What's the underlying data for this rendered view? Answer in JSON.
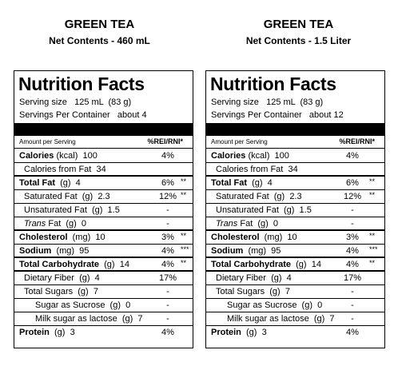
{
  "products": [
    {
      "name": "GREEN TEA",
      "net_contents": "Net Contents - 460 mL",
      "facts": {
        "title": "Nutrition Facts",
        "serving_size": "Serving size   125 mL  (83 g)",
        "servings": "Servings Per Container   about 4",
        "amount_per_serving": "Amount per Serving",
        "pct_header": "%REI/RNI*",
        "rows": [
          {
            "bold": "Calories",
            "rest": " (kcal)  100",
            "pct": "4%",
            "ast": ""
          },
          {
            "bold": "",
            "rest": "Calories from Fat  34",
            "pct": "",
            "ast": ""
          },
          {
            "bold": "Total Fat",
            "rest": "  (g)  4",
            "pct": "6%",
            "ast": "**"
          },
          {
            "bold": "",
            "rest": "Saturated Fat  (g)  2.3",
            "pct": "12%",
            "ast": "**"
          },
          {
            "bold": "",
            "rest": "Unsaturated Fat  (g)  1.5",
            "pct": "-",
            "ast": ""
          },
          {
            "bold": "",
            "ital": "Trans",
            "rest": " Fat  (g)  0",
            "pct": "-",
            "ast": ""
          },
          {
            "bold": "Cholesterol",
            "rest": "  (mg)  10",
            "pct": "3%",
            "ast": "**"
          },
          {
            "bold": "Sodium",
            "rest": "  (mg)  95",
            "pct": "4%",
            "ast": "***"
          },
          {
            "bold": "Total Carbohydrate",
            "rest": "  (g)  14",
            "pct": "4%",
            "ast": "**"
          },
          {
            "bold": "",
            "rest": "Dietary Fiber  (g)  4",
            "pct": "17%",
            "ast": ""
          },
          {
            "bold": "",
            "rest": "Total Sugars  (g)  7",
            "pct": "-",
            "ast": ""
          },
          {
            "bold": "",
            "rest": "Sugar as Sucrose  (g)  0",
            "pct": "-",
            "ast": ""
          },
          {
            "bold": "",
            "rest": "Milk sugar as lactose  (g)  7",
            "pct": "-",
            "ast": ""
          },
          {
            "bold": "Protein",
            "rest": "  (g)  3",
            "pct": "4%",
            "ast": ""
          }
        ]
      }
    },
    {
      "name": "GREEN TEA",
      "net_contents": "Net Contents - 1.5 Liter",
      "facts": {
        "title": "Nutrition Facts",
        "serving_size": "Serving size   125 mL  (83 g)",
        "servings": "Servings Per Container   about 12",
        "amount_per_serving": "Amount per Serving",
        "pct_header": "%REI/RNI*",
        "rows": [
          {
            "bold": "Calories",
            "rest": " (kcal)  100",
            "pct": "4%",
            "ast": ""
          },
          {
            "bold": "",
            "rest": "Calories from Fat  34",
            "pct": "",
            "ast": ""
          },
          {
            "bold": "Total Fat",
            "rest": "  (g)  4",
            "pct": "6%",
            "ast": "**"
          },
          {
            "bold": "",
            "rest": "Saturated Fat  (g)  2.3",
            "pct": "12%",
            "ast": "**"
          },
          {
            "bold": "",
            "rest": "Unsaturated Fat  (g)  1.5",
            "pct": "-",
            "ast": ""
          },
          {
            "bold": "",
            "ital": "Trans",
            "rest": " Fat  (g)  0",
            "pct": "-",
            "ast": ""
          },
          {
            "bold": "Cholesterol",
            "rest": "  (mg)  10",
            "pct": "3%",
            "ast": "**"
          },
          {
            "bold": "Sodium",
            "rest": "  (mg)  95",
            "pct": "4%",
            "ast": "***"
          },
          {
            "bold": "Total Carbohydrate",
            "rest": "  (g)  14",
            "pct": "4%",
            "ast": "**"
          },
          {
            "bold": "",
            "rest": "Dietary Fiber  (g)  4",
            "pct": "17%",
            "ast": ""
          },
          {
            "bold": "",
            "rest": "Total Sugars  (g)  7",
            "pct": "-",
            "ast": ""
          },
          {
            "bold": "",
            "rest": "Sugar as Sucrose  (g)  0",
            "pct": "-",
            "ast": ""
          },
          {
            "bold": "",
            "rest": "Milk sugar as lactose  (g)  7",
            "pct": "-",
            "ast": ""
          },
          {
            "bold": "Protein",
            "rest": "  (g)  3",
            "pct": "4%",
            "ast": ""
          }
        ]
      }
    }
  ]
}
